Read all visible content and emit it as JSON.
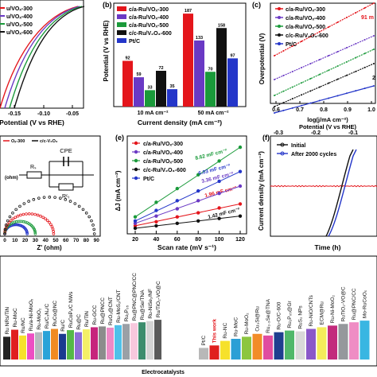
{
  "colors": {
    "red": "#e4151b",
    "purple": "#6a39c4",
    "green": "#1a9a3a",
    "black": "#111111",
    "blue": "#2436c9",
    "magenta": "#ee11cc",
    "grey": "#8a8a8a"
  },
  "chart_data": [
    {
      "panel": "a",
      "type": "line",
      "xlabel": "Potential (V vs RHE)",
      "ticks_x": [
        "-0.15",
        "-0.10",
        "-0.05"
      ],
      "legend": [
        "c/a-Ru/VOₓ-300",
        "c/a-Ru/VOₓ-400",
        "c/a-Ru/VOₓ-500",
        "c/a-Ru/VOₓ-600"
      ],
      "legend_display": [
        "u/VOₓ-300",
        "u/VOₓ-400",
        "u/VOₓ-500",
        "u/VOₓ-600"
      ],
      "series_note": "polarization curves, current rising steeply at more negative potential"
    },
    {
      "panel": "b",
      "label": "(b)",
      "type": "bar",
      "xlabel": "Current density (mA cm⁻²)",
      "ylabel": "Potential (V vs RHE)",
      "categories": [
        "10 mA cm⁻²",
        "50 mA cm⁻²"
      ],
      "series": [
        {
          "name": "c/a-Ru/VOₓ-300",
          "values": [
            92,
            187
          ]
        },
        {
          "name": "c/a-Ru/VOₓ-400",
          "values": [
            59,
            133
          ]
        },
        {
          "name": "c/a-Ru/VOₓ-500",
          "values": [
            33,
            70
          ]
        },
        {
          "name": "c/c-Ru/V₂O₃-600",
          "values": [
            72,
            158
          ]
        },
        {
          "name": "Pt/C",
          "values": [
            35,
            97
          ]
        }
      ],
      "ylim": [
        0,
        200
      ]
    },
    {
      "panel": "c",
      "label": "(c)",
      "type": "line",
      "xlabel": "log(j/mA cm⁻²)",
      "ylabel": "Overpotential (V)",
      "top_xlabel": "Potential (V vs RHE)",
      "ticks_x": [
        "0.6",
        "0.7",
        "0.8",
        "0.9",
        "1.0"
      ],
      "top_ticks": [
        "-0.3",
        "-0.2",
        "-0.1"
      ],
      "legend": [
        "c/a-Ru/VOₓ-300",
        "c/a-Ru/VOₓ-400",
        "c/a-Ru/VOₓ-500",
        "c/c-Ru/V₂O₃-600",
        "Pt/C"
      ],
      "annotations": [
        "91 m",
        "2"
      ]
    },
    {
      "panel": "d",
      "type": "scatter",
      "xlabel": "Z' (ohm)",
      "ylabel": "(ohm)",
      "ticks_x": [
        "0",
        "10",
        "20",
        "30",
        "40",
        "50",
        "60",
        "70",
        "80",
        "90"
      ],
      "circuit": {
        "R1": "Rₛ",
        "CPE": "CPE",
        "R2": "Rᶜₜ"
      },
      "legend_display": [
        "Oₓ-300",
        "c/c-V₂O₃"
      ],
      "semicircle_diameters": [
        22,
        30,
        48,
        88
      ]
    },
    {
      "panel": "e",
      "label": "(e)",
      "type": "scatter",
      "xlabel": "Scan rate (mV s⁻¹)",
      "ylabel": "ΔJ (mA cm⁻²)",
      "ticks_x": [
        "20",
        "40",
        "60",
        "80",
        "100",
        "120"
      ],
      "x": [
        20,
        40,
        60,
        80,
        100,
        120
      ],
      "series": [
        {
          "name": "c/a-Ru/VOₓ-300",
          "slope_label": "1.96 mF cm⁻²",
          "values": [
            0.06,
            0.11,
            0.17,
            0.22,
            0.28,
            0.33
          ]
        },
        {
          "name": "c/a-Ru/VOₓ-400",
          "slope_label": "3.36 mF cm⁻²",
          "values": [
            0.09,
            0.18,
            0.27,
            0.37,
            0.46,
            0.55
          ]
        },
        {
          "name": "c/a-Ru/VOₓ-500",
          "slope_label": "8.62 mF cm⁻²",
          "values": [
            0.17,
            0.35,
            0.52,
            0.69,
            0.86,
            1.03
          ]
        },
        {
          "name": "c/c-Ru/V₂O₃-600",
          "slope_label": "1.42 mF cm⁻²",
          "values": [
            0.03,
            0.06,
            0.09,
            0.12,
            0.15,
            0.18
          ]
        },
        {
          "name": "Pt/C",
          "slope_label": "6.03 mF cm⁻²",
          "values": [
            0.12,
            0.25,
            0.37,
            0.49,
            0.61,
            0.73
          ]
        }
      ],
      "ylim": [
        0,
        1.1
      ]
    },
    {
      "panel": "f",
      "label": "(f)",
      "type": "line",
      "xlabel": "Time (h)",
      "ylabel": "Current density (mA cm⁻²)",
      "legend": [
        "Initial",
        "After 2000 cycles"
      ]
    },
    {
      "panel": "g",
      "type": "bar",
      "xlabel": "Electrocatalysts",
      "categories": [
        "Ru NRs/TiN",
        "Ru-MoC",
        "Ru/NC",
        "Ru/a-Ni-MoOₓ",
        "Ru-MoO₂",
        "Ru/C₃N₄/C",
        "RuCo@NC",
        "Ru/C",
        "RuCoPₓ/C NWs",
        "Ru@C",
        "Ru/TiN",
        "Ru-GCC",
        "Ru@PNCC",
        "RuO₂@CNT",
        "Ru-MoS₂/CNT",
        "Ru₂P₀₅",
        "Ru@PNC@PNC/CC",
        "Ru@Se/TNA",
        "Ru-NiSe₂/NF",
        "Ru/TiO₂-VO@C"
      ],
      "categories2": [
        "Pt/C",
        "This work",
        "Ru-NC",
        "Ru-MoC",
        "Ru-MoO₂",
        "Cu₃Si@Ru",
        "Ru₂.₃Se@TNA",
        "Ru-O/C-600",
        "Ru₂P₀₅@Gr",
        "RuS₂ NPs",
        "Ru-NiO/CNTs",
        "ECM@Ru",
        "Ru-Ni-MoO₂",
        "RuTiO₂-VO@C",
        "Ru@PNC/CC",
        "Mo-RuCoOₓ"
      ]
    }
  ]
}
